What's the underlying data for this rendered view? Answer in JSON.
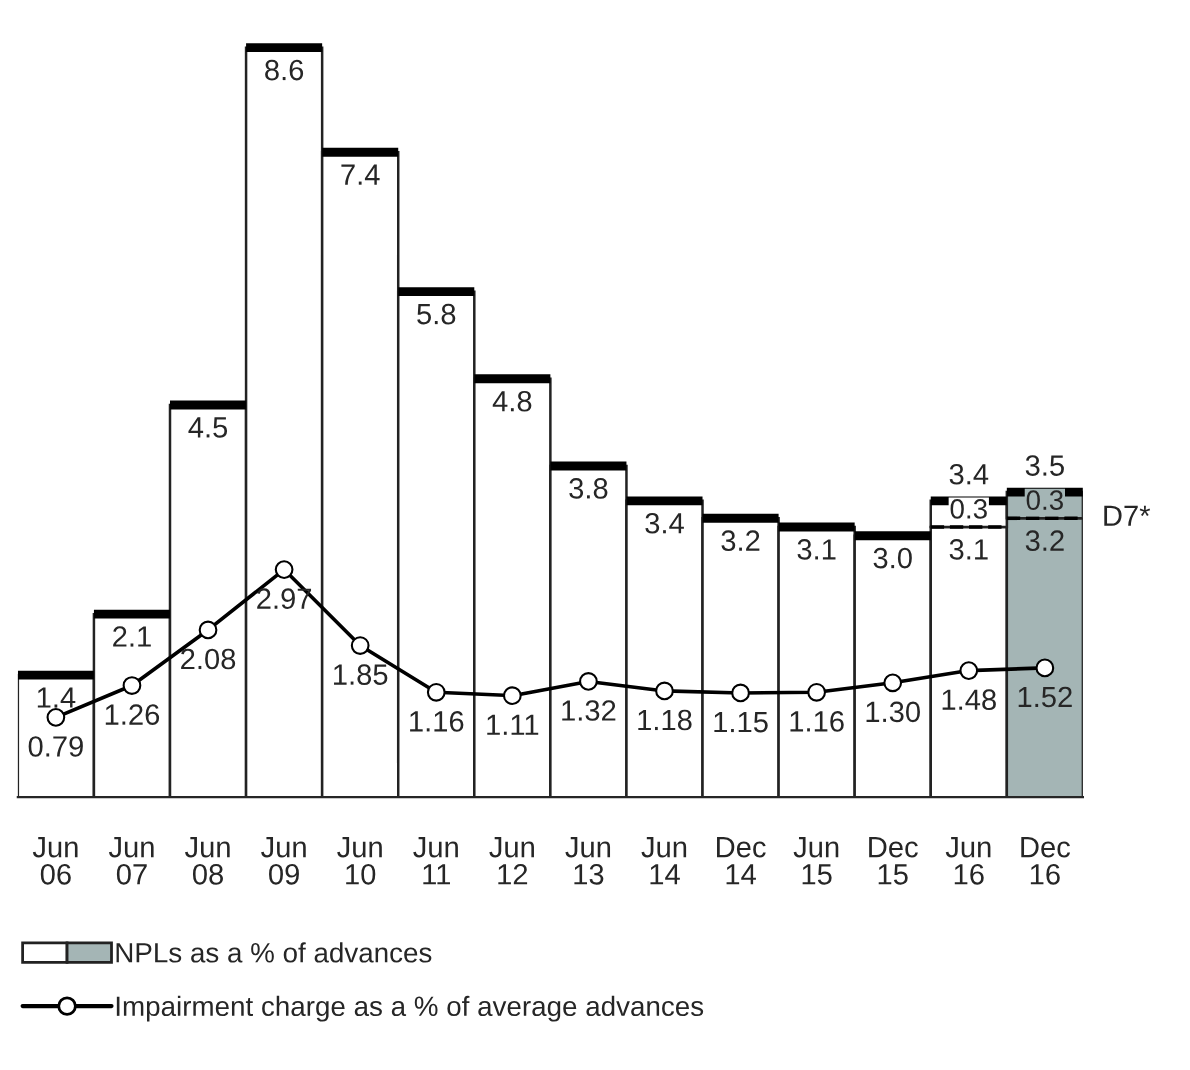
{
  "chart_data": {
    "type": "bar",
    "stacked": true,
    "legend": "bottom",
    "categories": [
      "Jun\n06",
      "Jun\n07",
      "Jun\n08",
      "Jun\n09",
      "Jun\n10",
      "Jun\n11",
      "Jun\n12",
      "Jun\n13",
      "Jun\n14",
      "Dec\n14",
      "Jun\n15",
      "Dec\n15",
      "Jun\n16",
      "Dec\n16"
    ],
    "series": [
      {
        "name": "NPLs as a % of advances",
        "colors": [
          "#ffffff",
          "#ffffff",
          "#ffffff",
          "#ffffff",
          "#ffffff",
          "#ffffff",
          "#ffffff",
          "#ffffff",
          "#ffffff",
          "#ffffff",
          "#ffffff",
          "#ffffff",
          "#ffffff",
          "#a4b5b5"
        ],
        "values": [
          1.4,
          2.1,
          4.5,
          8.6,
          7.4,
          5.8,
          4.8,
          3.8,
          3.4,
          3.2,
          3.1,
          3.0,
          3.1,
          3.2
        ],
        "value_labels": [
          "1.4",
          "2.1",
          "4.5",
          "8.6",
          "7.4",
          "5.8",
          "4.8",
          "3.8",
          "3.4",
          "3.2",
          "3.1",
          "3.0",
          "3.1",
          "3.2"
        ]
      },
      {
        "colors": [
          "#ffffff",
          "#ffffff",
          "#ffffff",
          "#ffffff",
          "#ffffff",
          "#ffffff",
          "#ffffff",
          "#ffffff",
          "#ffffff",
          "#ffffff",
          "#ffffff",
          "#ffffff",
          "#ffffff",
          "#a4b5b5"
        ],
        "values": [
          null,
          null,
          null,
          null,
          null,
          null,
          null,
          null,
          null,
          null,
          null,
          null,
          0.3,
          0.3
        ],
        "value_labels": [
          null,
          null,
          null,
          null,
          null,
          null,
          null,
          null,
          null,
          null,
          null,
          null,
          "0.3",
          "0.3"
        ]
      },
      {
        "name": "Impairment charge as a % of average advances",
        "type": "line",
        "axis": "y2",
        "color": "#000000",
        "marker": "circle",
        "values": [
          0.79,
          1.26,
          2.08,
          2.97,
          1.85,
          1.16,
          1.11,
          1.32,
          1.18,
          1.15,
          1.16,
          1.3,
          1.48,
          1.52
        ],
        "value_labels": [
          "0.79",
          "1.26",
          "2.08",
          "2.97",
          "1.85",
          "1.16",
          "1.11",
          "1.32",
          "1.18",
          "1.15",
          "1.16",
          "1.30",
          "1.48",
          "1.52"
        ]
      }
    ],
    "totals": [
      null,
      null,
      null,
      null,
      null,
      null,
      null,
      null,
      null,
      null,
      null,
      null,
      "3.4",
      "3.5"
    ],
    "annotations": [
      {
        "text": "D7*",
        "x": "Dec\n16",
        "y": 3.2
      }
    ]
  }
}
